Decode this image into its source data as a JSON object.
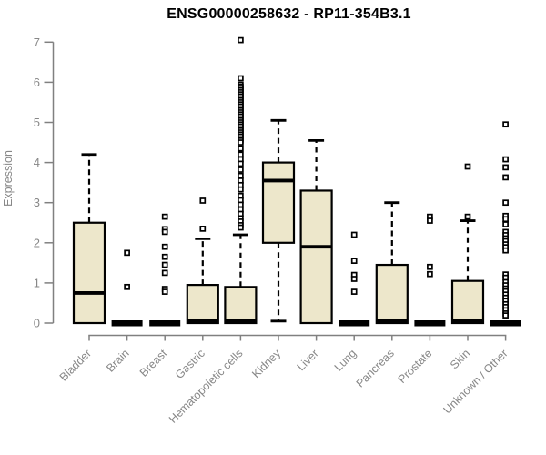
{
  "chart_data": {
    "type": "boxplot",
    "title": "ENSG00000258632 - RP11-354B3.1",
    "ylabel": "Expression",
    "xlabel": "",
    "ylim": [
      0,
      7
    ],
    "yticks": [
      0,
      1,
      2,
      3,
      4,
      5,
      6,
      7
    ],
    "grid": false,
    "legend": "none",
    "box_fill": "#EDE7CB",
    "box_stroke": "#000000",
    "axis_color": "#808080",
    "label_color": "#878787",
    "categories": [
      "Bladder",
      "Brain",
      "Breast",
      "Gastric",
      "Hematopoietic cells",
      "Kidney",
      "Liver",
      "Lung",
      "Pancreas",
      "Prostate",
      "Skin",
      "Unknown / Other"
    ],
    "series": [
      {
        "name": "Bladder",
        "q1": 0,
        "median": 0.75,
        "q3": 2.5,
        "whisker_low": 0,
        "whisker_high": 4.2,
        "outliers": []
      },
      {
        "name": "Brain",
        "q1": 0,
        "median": 0,
        "q3": 0,
        "whisker_low": 0,
        "whisker_high": 0,
        "outliers": [
          1.75,
          0.9
        ]
      },
      {
        "name": "Breast",
        "q1": 0,
        "median": 0,
        "q3": 0,
        "whisker_low": 0,
        "whisker_high": 0,
        "outliers": [
          2.65,
          2.34,
          2.27,
          1.9,
          1.65,
          1.45,
          1.25,
          0.85,
          0.78
        ]
      },
      {
        "name": "Gastric",
        "q1": 0,
        "median": 0.05,
        "q3": 0.95,
        "whisker_low": 0,
        "whisker_high": 2.1,
        "outliers": [
          3.05,
          2.35
        ]
      },
      {
        "name": "Hematopoietic cells",
        "q1": 0,
        "median": 0.05,
        "q3": 0.9,
        "whisker_low": 0,
        "whisker_high": 2.2,
        "outliers": [
          7.05,
          6.1,
          5.94,
          5.89,
          5.85,
          5.8,
          5.75,
          5.7,
          5.65,
          5.6,
          5.55,
          5.5,
          5.45,
          5.4,
          5.35,
          5.3,
          5.25,
          5.2,
          5.15,
          5.1,
          5.05,
          5.0,
          4.95,
          4.9,
          4.85,
          4.8,
          4.75,
          4.7,
          4.65,
          4.6,
          4.55,
          4.5,
          4.35,
          4.2,
          4.08,
          3.97,
          3.82,
          3.67,
          3.55,
          3.44,
          3.33,
          3.17,
          3.06,
          2.95,
          2.83,
          2.72,
          2.61,
          2.53,
          2.44,
          2.38
        ]
      },
      {
        "name": "Kidney",
        "q1": 2.0,
        "median": 3.55,
        "q3": 4.0,
        "whisker_low": 0.05,
        "whisker_high": 5.05,
        "outliers": []
      },
      {
        "name": "Liver",
        "q1": 0,
        "median": 1.9,
        "q3": 3.3,
        "whisker_low": 0,
        "whisker_high": 4.55,
        "outliers": []
      },
      {
        "name": "Lung",
        "q1": 0,
        "median": 0,
        "q3": 0,
        "whisker_low": 0,
        "whisker_high": 0,
        "outliers": [
          2.2,
          1.55,
          1.2,
          1.1,
          0.78
        ]
      },
      {
        "name": "Pancreas",
        "q1": 0,
        "median": 0.05,
        "q3": 1.45,
        "whisker_low": 0,
        "whisker_high": 3.0,
        "outliers": []
      },
      {
        "name": "Prostate",
        "q1": 0,
        "median": 0,
        "q3": 0,
        "whisker_low": 0,
        "whisker_high": 0,
        "outliers": [
          2.65,
          2.55,
          1.4,
          1.22
        ]
      },
      {
        "name": "Skin",
        "q1": 0,
        "median": 0.05,
        "q3": 1.05,
        "whisker_low": 0,
        "whisker_high": 2.55,
        "outliers": [
          3.9,
          2.65
        ]
      },
      {
        "name": "Unknown / Other",
        "q1": 0,
        "median": 0,
        "q3": 0,
        "whisker_low": 0,
        "whisker_high": 0,
        "outliers": [
          4.95,
          4.08,
          3.88,
          3.63,
          3.0,
          2.67,
          2.59,
          2.46,
          2.27,
          2.19,
          2.11,
          2.04,
          1.96,
          1.89,
          1.81,
          1.21,
          1.13,
          1.02,
          0.94,
          0.86,
          0.79,
          0.71,
          0.63,
          0.55,
          0.47,
          0.4,
          0.32,
          0.24,
          0.19
        ]
      }
    ]
  }
}
